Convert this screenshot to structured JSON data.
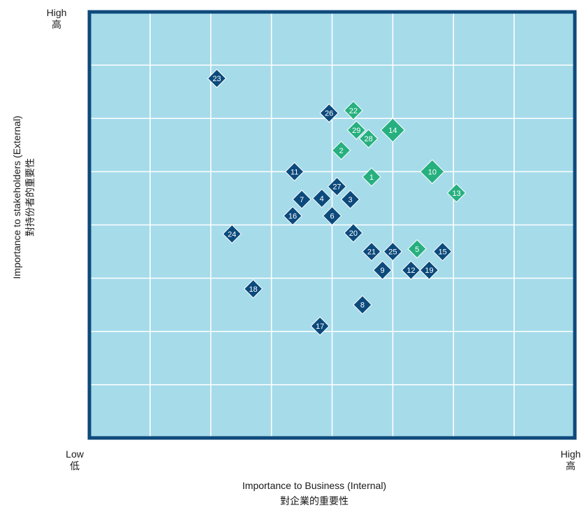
{
  "chart_data": {
    "type": "scatter",
    "xlabel": "Importance to Business (Internal)",
    "xlabel_zh": "對企業的重要性",
    "ylabel": "Importance to stakeholders (External)",
    "ylabel_zh": "對持份者的重要性",
    "x_low": "Low",
    "x_low_zh": "低",
    "x_high": "High",
    "x_high_zh": "高",
    "y_high": "High",
    "y_high_zh": "高",
    "xlim": [
      0,
      8
    ],
    "ylim": [
      0,
      8
    ],
    "grid": true,
    "colors": {
      "background": "#a6dbea",
      "frame": "#0e4a7b",
      "grid": "#ffffff",
      "dark": "#0c4a7c",
      "green": "#27b07f"
    },
    "points": [
      {
        "id": "23",
        "x": 2.1,
        "y": 6.75,
        "color": "dark",
        "size": "small"
      },
      {
        "id": "26",
        "x": 3.95,
        "y": 6.1,
        "color": "dark",
        "size": "small"
      },
      {
        "id": "22",
        "x": 4.35,
        "y": 6.15,
        "color": "green",
        "size": "small"
      },
      {
        "id": "29",
        "x": 4.4,
        "y": 5.78,
        "color": "green",
        "size": "small"
      },
      {
        "id": "14",
        "x": 5.0,
        "y": 5.78,
        "color": "green",
        "size": "large"
      },
      {
        "id": "28",
        "x": 4.6,
        "y": 5.62,
        "color": "green",
        "size": "small"
      },
      {
        "id": "2",
        "x": 4.15,
        "y": 5.4,
        "color": "green",
        "size": "small"
      },
      {
        "id": "11",
        "x": 3.38,
        "y": 5.0,
        "color": "dark",
        "size": "small"
      },
      {
        "id": "1",
        "x": 4.65,
        "y": 4.9,
        "color": "green",
        "size": "small"
      },
      {
        "id": "10",
        "x": 5.65,
        "y": 5.0,
        "color": "green",
        "size": "large"
      },
      {
        "id": "27",
        "x": 4.08,
        "y": 4.72,
        "color": "dark",
        "size": "small"
      },
      {
        "id": "7",
        "x": 3.5,
        "y": 4.48,
        "color": "dark",
        "size": "small"
      },
      {
        "id": "4",
        "x": 3.83,
        "y": 4.5,
        "color": "dark",
        "size": "small"
      },
      {
        "id": "3",
        "x": 4.3,
        "y": 4.48,
        "color": "dark",
        "size": "small"
      },
      {
        "id": "13",
        "x": 6.05,
        "y": 4.6,
        "color": "green",
        "size": "small"
      },
      {
        "id": "16",
        "x": 3.35,
        "y": 4.17,
        "color": "dark",
        "size": "small"
      },
      {
        "id": "6",
        "x": 4.0,
        "y": 4.17,
        "color": "dark",
        "size": "small"
      },
      {
        "id": "24",
        "x": 2.35,
        "y": 3.83,
        "color": "dark",
        "size": "small"
      },
      {
        "id": "20",
        "x": 4.35,
        "y": 3.85,
        "color": "dark",
        "size": "small"
      },
      {
        "id": "21",
        "x": 4.65,
        "y": 3.5,
        "color": "dark",
        "size": "small"
      },
      {
        "id": "25",
        "x": 5.0,
        "y": 3.5,
        "color": "dark",
        "size": "small"
      },
      {
        "id": "5",
        "x": 5.4,
        "y": 3.55,
        "color": "green",
        "size": "small"
      },
      {
        "id": "15",
        "x": 5.82,
        "y": 3.5,
        "color": "dark",
        "size": "small"
      },
      {
        "id": "9",
        "x": 4.83,
        "y": 3.15,
        "color": "dark",
        "size": "small"
      },
      {
        "id": "12",
        "x": 5.3,
        "y": 3.15,
        "color": "dark",
        "size": "small"
      },
      {
        "id": "19",
        "x": 5.6,
        "y": 3.15,
        "color": "dark",
        "size": "small"
      },
      {
        "id": "18",
        "x": 2.7,
        "y": 2.8,
        "color": "dark",
        "size": "small"
      },
      {
        "id": "8",
        "x": 4.5,
        "y": 2.5,
        "color": "dark",
        "size": "small"
      },
      {
        "id": "17",
        "x": 3.8,
        "y": 2.1,
        "color": "dark",
        "size": "small"
      }
    ]
  }
}
